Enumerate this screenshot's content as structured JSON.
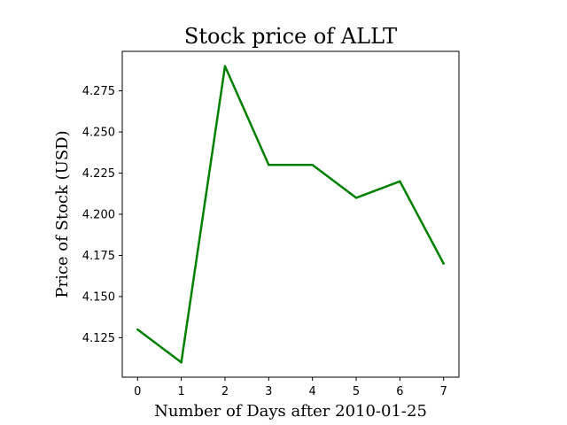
{
  "chart_data": {
    "type": "line",
    "title": "Stock price of ALLT",
    "xlabel": "Number of Days after 2010-01-25",
    "ylabel": "Price of Stock (USD)",
    "x": [
      0,
      1,
      2,
      3,
      4,
      5,
      6,
      7
    ],
    "series": [
      {
        "values": [
          4.13,
          4.11,
          4.29,
          4.23,
          4.23,
          4.21,
          4.22,
          4.17
        ],
        "color": "#008000"
      }
    ],
    "xlim": [
      -0.35,
      7.35
    ],
    "ylim": [
      4.101,
      4.299
    ],
    "xticks": [
      "0",
      "1",
      "2",
      "3",
      "4",
      "5",
      "6",
      "7"
    ],
    "yticks": [
      "4.125",
      "4.150",
      "4.175",
      "4.200",
      "4.225",
      "4.250",
      "4.275"
    ],
    "grid": false
  }
}
